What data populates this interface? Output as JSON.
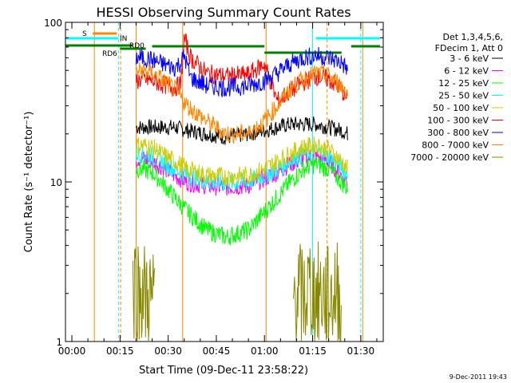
{
  "chart_data": {
    "type": "line",
    "title": "HESSI Observing Summary Count Rates",
    "xlabel": "Start Time (09-Dec-11 23:58:22)",
    "ylabel": "Count Rate (s⁻¹ detector⁻¹)",
    "y_scale": "log",
    "ylim": [
      1,
      100
    ],
    "xlim_minutes": [
      -2,
      97
    ],
    "x_ticks": [
      {
        "label": "00:00",
        "v": 0
      },
      {
        "label": "00:15",
        "v": 15
      },
      {
        "label": "00:30",
        "v": 30
      },
      {
        "label": "00:45",
        "v": 45
      },
      {
        "label": "01:00",
        "v": 60
      },
      {
        "label": "01:15",
        "v": 75
      },
      {
        "label": "01:30",
        "v": 90
      }
    ],
    "y_ticks": [
      {
        "label": "1",
        "v": 1
      },
      {
        "label": "10",
        "v": 10
      },
      {
        "label": "100",
        "v": 100
      }
    ],
    "legend": {
      "position": "right",
      "header": [
        "Det 1,3,4,5,6,",
        "FDecim 1, Att 0"
      ]
    },
    "series": [
      {
        "name": "3 - 6 keV",
        "color": "#000000",
        "x": [
          20,
          22,
          25,
          28,
          32,
          36,
          42,
          48,
          55,
          60,
          64,
          68,
          72,
          76,
          80,
          84,
          86
        ],
        "y": [
          22,
          22,
          22,
          22,
          22,
          21,
          20,
          19,
          20,
          21,
          22,
          23,
          23,
          23,
          22,
          21,
          20
        ]
      },
      {
        "name": "6 - 12 keV",
        "color": "#ff00ff",
        "x": [
          20,
          22,
          25,
          28,
          32,
          36,
          42,
          48,
          55,
          60,
          64,
          68,
          72,
          76,
          80,
          84,
          86
        ],
        "y": [
          14,
          14,
          13.5,
          12.5,
          11,
          10,
          9.5,
          9.3,
          9.5,
          10.5,
          11.5,
          13,
          14,
          14.5,
          13.5,
          11,
          10
        ]
      },
      {
        "name": "12 - 25 keV",
        "color": "#00ff00",
        "x": [
          20,
          22,
          25,
          28,
          32,
          36,
          42,
          48,
          55,
          60,
          64,
          68,
          72,
          76,
          80,
          84,
          86
        ],
        "y": [
          12,
          12,
          11.5,
          10,
          8,
          6.5,
          5,
          4.5,
          5,
          6.5,
          8,
          10,
          12,
          13,
          12,
          10,
          9
        ]
      },
      {
        "name": "25 - 50 keV",
        "color": "#00ffff",
        "x": [
          20,
          22,
          25,
          28,
          32,
          36,
          42,
          48,
          55,
          60,
          64,
          68,
          72,
          76,
          80,
          84,
          86
        ],
        "y": [
          15,
          15,
          14.5,
          13.5,
          12,
          11,
          10,
          9.8,
          10,
          11,
          12,
          13.5,
          15,
          15.5,
          14.5,
          12.5,
          11
        ]
      },
      {
        "name": "50 - 100 keV",
        "color": "#cccc00",
        "x": [
          20,
          22,
          25,
          28,
          32,
          36,
          42,
          48,
          55,
          60,
          64,
          68,
          72,
          76,
          80,
          84,
          86
        ],
        "y": [
          17,
          17,
          16.5,
          15,
          13.5,
          12,
          11,
          10.8,
          11,
          12,
          13.5,
          15,
          16.5,
          17,
          16,
          13.5,
          12
        ]
      },
      {
        "name": "100 - 300 keV",
        "color": "#ff0000",
        "x": [
          20,
          22,
          25,
          28,
          32,
          34,
          35,
          37,
          42,
          48,
          55,
          60,
          64,
          68,
          72,
          76,
          80,
          84,
          86
        ],
        "y": [
          43,
          44,
          43,
          41,
          39,
          41,
          80,
          60,
          48,
          46,
          47,
          55,
          32,
          37,
          42,
          46,
          44,
          38,
          32
        ]
      },
      {
        "name": "300 - 800 keV",
        "color": "#0000ff",
        "x": [
          20,
          22,
          25,
          28,
          32,
          34,
          35,
          37,
          42,
          48,
          55,
          60,
          64,
          68,
          72,
          76,
          80,
          84,
          86
        ],
        "y": [
          60,
          60,
          58,
          55,
          52,
          56,
          62,
          45,
          40,
          39,
          40,
          43,
          48,
          55,
          60,
          62,
          60,
          56,
          50
        ]
      },
      {
        "name": "800 - 7000 keV",
        "color": "#ff8800",
        "x": [
          20,
          22,
          25,
          28,
          32,
          36,
          42,
          48,
          55,
          60,
          64,
          68,
          72,
          76,
          80,
          84,
          86
        ],
        "y": [
          49,
          50,
          48,
          44,
          38,
          30,
          24,
          20,
          20,
          24,
          30,
          38,
          44,
          48,
          46,
          40,
          36
        ]
      },
      {
        "name": "7000 - 20000 keV",
        "color": "#888800",
        "x": [
          19,
          20,
          21,
          22,
          23,
          24,
          25,
          26,
          69,
          70,
          72,
          74,
          76,
          78,
          80,
          82,
          84
        ],
        "y": [
          2.1,
          2.5,
          1.9,
          2.2,
          1.8,
          2.0,
          1.7,
          1.9,
          1.9,
          2.1,
          1.8,
          2.2,
          1.9,
          2.0,
          1.8,
          2.1,
          1.9
        ]
      }
    ],
    "flags": [
      {
        "label": "S",
        "color": "#ff8800"
      },
      {
        "label": "IN",
        "color": "#00ffff"
      },
      {
        "label": "RD0",
        "color": "#008000"
      },
      {
        "label": "RD6",
        "color": "#008000"
      }
    ],
    "footer_date": "9-Dec-2011 19:43"
  }
}
